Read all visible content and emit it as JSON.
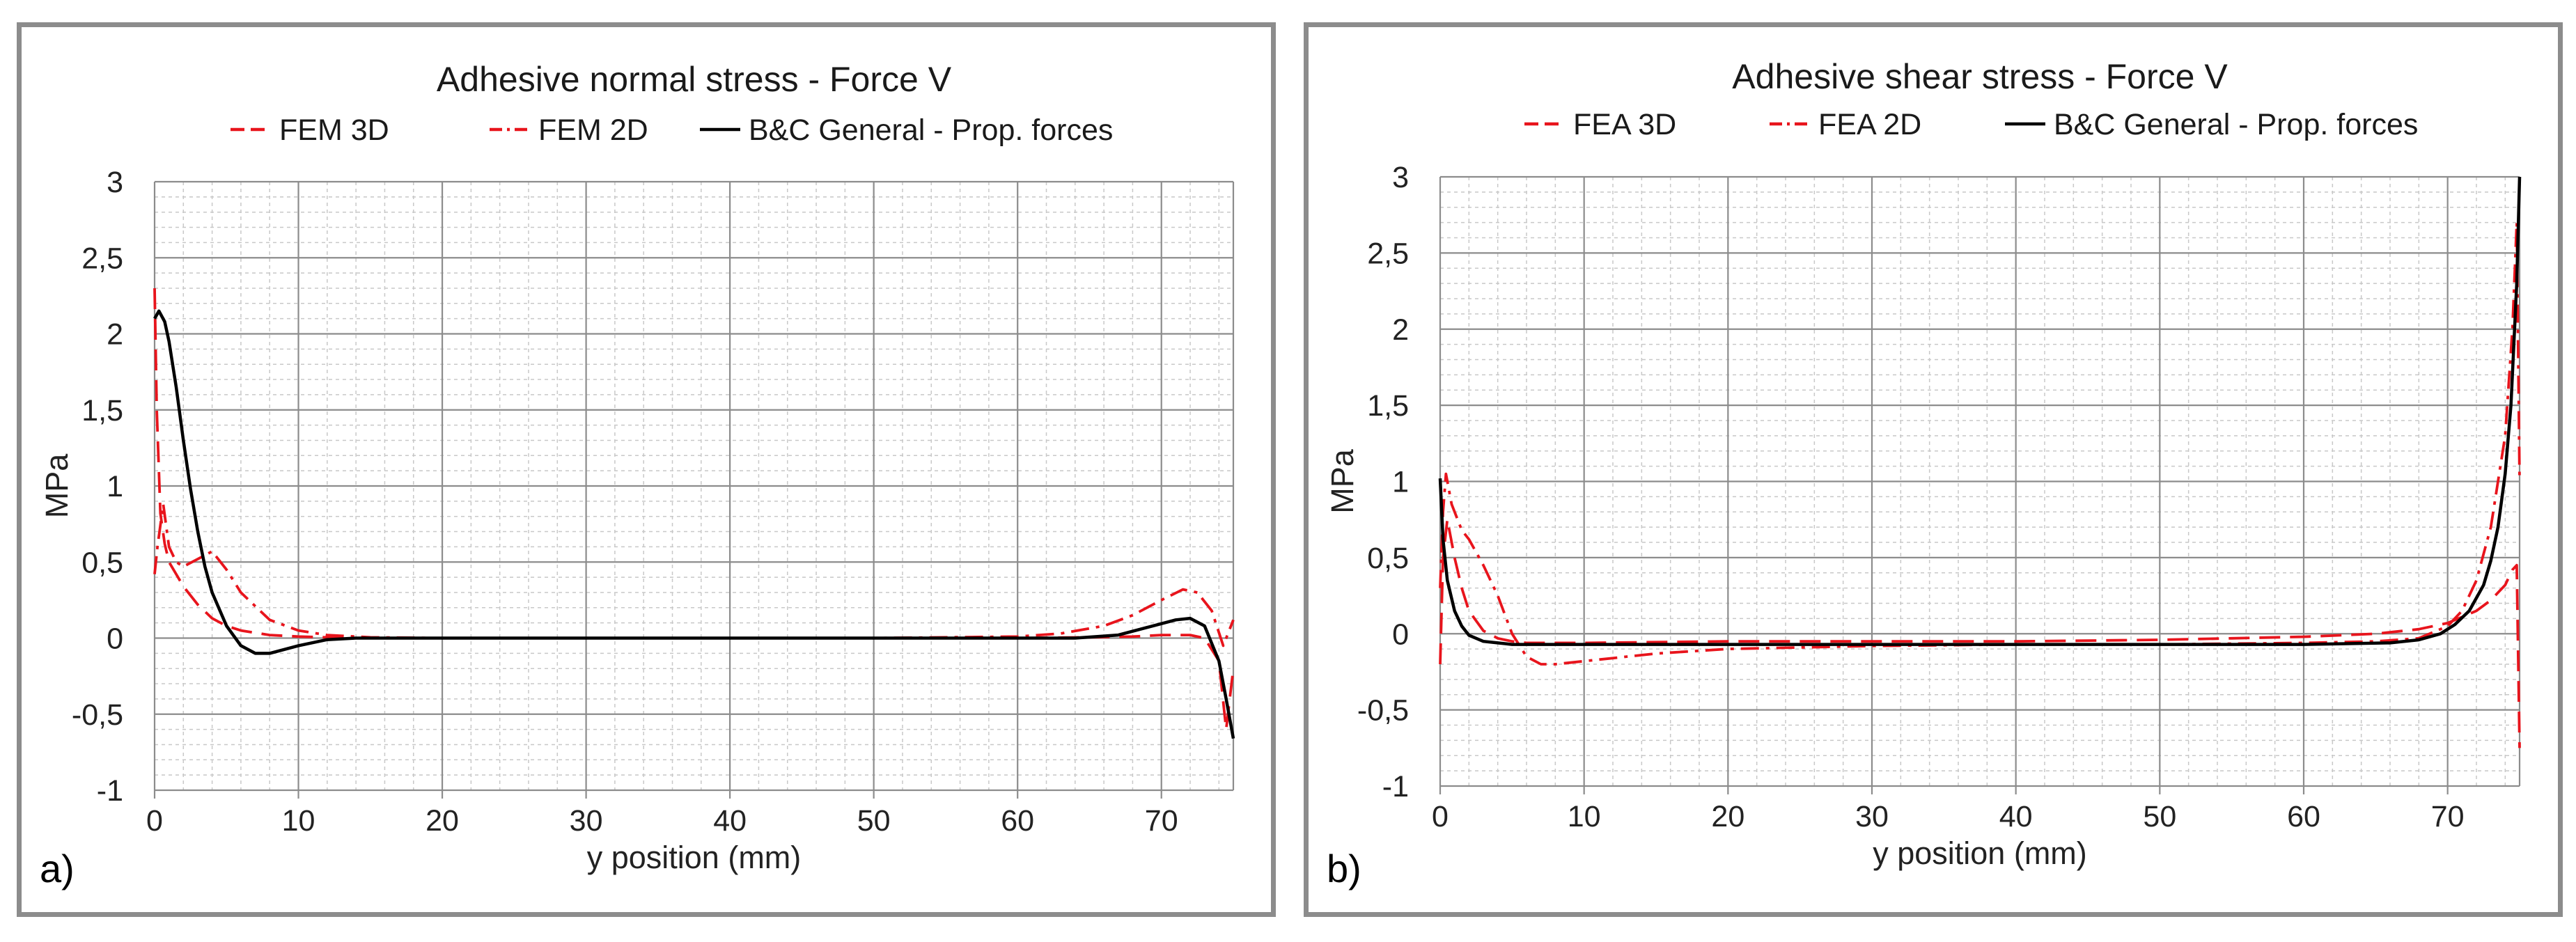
{
  "colors": {
    "fem": "#e8141c",
    "bc": "#000000",
    "grid_major": "#8c8c8c",
    "grid_minor": "#c8c8c8",
    "frame": "#8c8c8c"
  },
  "chart_data": [
    {
      "type": "line",
      "panel_label": "a)",
      "title": "Adhesive normal stress - Force V",
      "xlabel": "y position (mm)",
      "ylabel": "MPa",
      "xlim": [
        0,
        75
      ],
      "ylim": [
        -1,
        3
      ],
      "xticks": [
        0,
        10,
        20,
        30,
        40,
        50,
        60,
        70
      ],
      "xtick_labels": [
        "0",
        "10",
        "20",
        "30",
        "40",
        "50",
        "60",
        "70"
      ],
      "yticks": [
        -1,
        -0.5,
        0,
        0.5,
        1,
        1.5,
        2,
        2.5,
        3
      ],
      "ytick_labels": [
        "-1",
        "-0,5",
        "0",
        "0,5",
        "1",
        "1,5",
        "2",
        "2,5",
        "3"
      ],
      "legend_position": "top",
      "series": [
        {
          "name": "FEM 3D",
          "style": "dashed",
          "color": "#e8141c",
          "x": [
            0,
            0.15,
            0.4,
            0.7,
            1.0,
            1.5,
            2,
            3,
            4,
            5,
            6,
            8,
            10,
            12,
            14,
            20,
            30,
            40,
            50,
            60,
            65,
            68,
            70,
            72,
            73,
            74,
            74.5,
            75
          ],
          "y": [
            2.3,
            1.5,
            0.82,
            0.62,
            0.5,
            0.42,
            0.34,
            0.22,
            0.13,
            0.08,
            0.05,
            0.02,
            0.01,
            0.005,
            0,
            0,
            0,
            0,
            0,
            0,
            0.005,
            0.01,
            0.02,
            0.02,
            0.0,
            -0.15,
            -0.6,
            -0.2
          ]
        },
        {
          "name": "FEM 2D",
          "style": "dashdot",
          "color": "#e8141c",
          "x": [
            0,
            0.2,
            0.6,
            1.0,
            1.5,
            2,
            3,
            4,
            5,
            6,
            8,
            10,
            12,
            15,
            20,
            30,
            40,
            50,
            60,
            63,
            66,
            68,
            70,
            71.5,
            72.5,
            73.5,
            74.3,
            75
          ],
          "y": [
            0.42,
            0.6,
            0.88,
            0.6,
            0.5,
            0.47,
            0.52,
            0.57,
            0.45,
            0.3,
            0.12,
            0.05,
            0.02,
            0.005,
            0,
            0,
            0,
            0,
            0.01,
            0.03,
            0.08,
            0.15,
            0.25,
            0.32,
            0.3,
            0.18,
            -0.05,
            0.12
          ]
        },
        {
          "name": "B&C General - Prop. forces",
          "style": "solid",
          "color": "#000000",
          "x": [
            0,
            0.3,
            0.7,
            1,
            1.5,
            2,
            2.5,
            3,
            3.5,
            4,
            5,
            6,
            7,
            8,
            10,
            12,
            14,
            20,
            30,
            40,
            50,
            60,
            64,
            67,
            69,
            71,
            72,
            73,
            74,
            74.5,
            75
          ],
          "y": [
            2.1,
            2.15,
            2.08,
            1.95,
            1.65,
            1.3,
            0.98,
            0.7,
            0.47,
            0.3,
            0.08,
            -0.05,
            -0.1,
            -0.1,
            -0.05,
            -0.01,
            0,
            0,
            0,
            0,
            0,
            0,
            0,
            0.02,
            0.07,
            0.12,
            0.13,
            0.08,
            -0.15,
            -0.4,
            -0.66
          ]
        }
      ]
    },
    {
      "type": "line",
      "panel_label": "b)",
      "title": "Adhesive shear stress - Force V",
      "xlabel": "y position (mm)",
      "ylabel": "MPa",
      "xlim": [
        0,
        75
      ],
      "ylim": [
        -1,
        3
      ],
      "xticks": [
        0,
        10,
        20,
        30,
        40,
        50,
        60,
        70
      ],
      "xtick_labels": [
        "0",
        "10",
        "20",
        "30",
        "40",
        "50",
        "60",
        "70"
      ],
      "yticks": [
        -1,
        -0.5,
        0,
        0.5,
        1,
        1.5,
        2,
        2.5,
        3
      ],
      "ytick_labels": [
        "-1",
        "-0,5",
        "0",
        "0,5",
        "1",
        "1,5",
        "2",
        "2,5",
        "3"
      ],
      "legend_position": "top",
      "series": [
        {
          "name": "FEA 3D",
          "style": "dashed",
          "color": "#e8141c",
          "x": [
            0,
            0.2,
            0.5,
            1,
            1.5,
            2,
            3,
            4,
            5,
            6,
            10,
            20,
            30,
            40,
            50,
            55,
            60,
            65,
            68,
            70,
            72,
            73,
            74,
            74.5,
            74.8,
            75
          ],
          "y": [
            -0.2,
            0.5,
            0.75,
            0.5,
            0.3,
            0.15,
            0.02,
            -0.03,
            -0.05,
            -0.06,
            -0.06,
            -0.05,
            -0.05,
            -0.05,
            -0.04,
            -0.03,
            -0.02,
            0.0,
            0.03,
            0.07,
            0.15,
            0.22,
            0.32,
            0.42,
            0.45,
            -0.75
          ]
        },
        {
          "name": "FEA 2D",
          "style": "dashdot",
          "color": "#e8141c",
          "x": [
            0,
            0.2,
            0.4,
            0.8,
            1.5,
            2,
            3,
            4,
            5,
            6,
            7,
            8,
            10,
            15,
            20,
            30,
            40,
            50,
            60,
            65,
            68,
            70,
            71,
            72,
            73,
            74,
            74.5,
            74.8,
            75
          ],
          "y": [
            0.3,
            0.8,
            1.05,
            0.85,
            0.68,
            0.62,
            0.45,
            0.25,
            0.0,
            -0.15,
            -0.2,
            -0.2,
            -0.18,
            -0.13,
            -0.1,
            -0.08,
            -0.07,
            -0.07,
            -0.06,
            -0.05,
            -0.03,
            0.05,
            0.15,
            0.35,
            0.7,
            1.3,
            2.0,
            2.7,
            1.0
          ]
        },
        {
          "name": "B&C General - Prop. forces",
          "style": "solid",
          "color": "#000000",
          "x": [
            0,
            0.2,
            0.5,
            1,
            1.5,
            2,
            3,
            4,
            5,
            10,
            20,
            30,
            40,
            50,
            60,
            66,
            68,
            69.5,
            70.5,
            71.5,
            72.5,
            73,
            73.5,
            74,
            74.4,
            74.8,
            75
          ],
          "y": [
            1.02,
            0.62,
            0.35,
            0.15,
            0.05,
            -0.01,
            -0.05,
            -0.06,
            -0.07,
            -0.07,
            -0.07,
            -0.07,
            -0.07,
            -0.07,
            -0.07,
            -0.06,
            -0.04,
            0.0,
            0.06,
            0.15,
            0.32,
            0.48,
            0.7,
            1.05,
            1.5,
            2.3,
            3.0
          ]
        }
      ]
    }
  ]
}
